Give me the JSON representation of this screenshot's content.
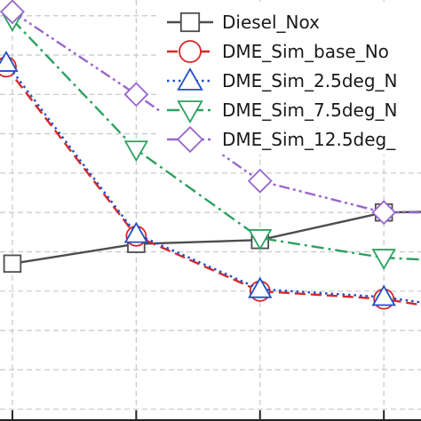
{
  "chart_data": {
    "type": "line",
    "title": "",
    "xlabel": "",
    "ylabel": "",
    "xlim": [
      0.9,
      4.3
    ],
    "ylim": [
      -0.3,
      10.4
    ],
    "grid": true,
    "legend_position": "top-right",
    "series": [
      {
        "name": "Diesel_Nox",
        "color": "#4d4d4d",
        "dash": "solid",
        "marker": "square",
        "x": [
          1,
          2,
          3,
          4,
          5
        ],
        "y": [
          3.7,
          4.2,
          4.3,
          5.0,
          5.05
        ]
      },
      {
        "name": "DME_Sim_base_No",
        "color": "#d62728",
        "dash": "dash",
        "marker": "circle",
        "x": [
          0.95,
          2,
          3,
          4,
          5
        ],
        "y": [
          8.7,
          4.4,
          3.0,
          2.8,
          2.3
        ]
      },
      {
        "name": "DME_Sim_2.5deg_N",
        "color": "#1f50c8",
        "dash": "dot",
        "marker": "triangle-up",
        "x": [
          0.95,
          2,
          3,
          4,
          5
        ],
        "y": [
          8.8,
          4.45,
          3.05,
          2.85,
          2.4
        ]
      },
      {
        "name": "DME_Sim_7.5deg_N",
        "color": "#2ca25f",
        "dash": "dashdot",
        "marker": "triangle-down",
        "x": [
          1,
          2,
          3,
          4,
          5
        ],
        "y": [
          9.9,
          6.6,
          4.35,
          3.85,
          3.7
        ]
      },
      {
        "name": "DME_Sim_12.5deg_",
        "color": "#9966cc",
        "dash": "dashdotdot",
        "marker": "diamond",
        "x": [
          1,
          2,
          3,
          4,
          5
        ],
        "y": [
          10.1,
          8.0,
          5.8,
          5.0,
          5.0
        ]
      }
    ]
  }
}
